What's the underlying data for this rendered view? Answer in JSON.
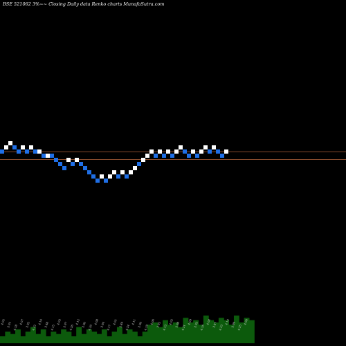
{
  "chart_data": {
    "type": "renko",
    "title": "BSE 521062  3%~~ Closing Daily data  Renko  charts MunafaSutra.com",
    "colors": {
      "background": "#000000",
      "up_brick": "#ffffff",
      "down_brick": "#1f6fe6",
      "reference_line": "#b4643a",
      "volume": "#0c5a0c"
    },
    "bricks": [
      {
        "dir": "down",
        "level": 0
      },
      {
        "dir": "up",
        "level": 1
      },
      {
        "dir": "up",
        "level": 2
      },
      {
        "dir": "down",
        "level": 1
      },
      {
        "dir": "down",
        "level": 0
      },
      {
        "dir": "up",
        "level": 1
      },
      {
        "dir": "down",
        "level": 0
      },
      {
        "dir": "up",
        "level": 1
      },
      {
        "dir": "down",
        "level": 0
      },
      {
        "dir": "up",
        "level": 0
      },
      {
        "dir": "down",
        "level": -1
      },
      {
        "dir": "up",
        "level": -1
      },
      {
        "dir": "down",
        "level": -1
      },
      {
        "dir": "down",
        "level": -2
      },
      {
        "dir": "down",
        "level": -3
      },
      {
        "dir": "down",
        "level": -4
      },
      {
        "dir": "up",
        "level": -2
      },
      {
        "dir": "down",
        "level": -3
      },
      {
        "dir": "up",
        "level": -2
      },
      {
        "dir": "down",
        "level": -3
      },
      {
        "dir": "down",
        "level": -4
      },
      {
        "dir": "down",
        "level": -5
      },
      {
        "dir": "down",
        "level": -6
      },
      {
        "dir": "down",
        "level": -7
      },
      {
        "dir": "up",
        "level": -6
      },
      {
        "dir": "down",
        "level": -7
      },
      {
        "dir": "up",
        "level": -6
      },
      {
        "dir": "up",
        "level": -5
      },
      {
        "dir": "down",
        "level": -6
      },
      {
        "dir": "up",
        "level": -5
      },
      {
        "dir": "down",
        "level": -6
      },
      {
        "dir": "up",
        "level": -5
      },
      {
        "dir": "up",
        "level": -4
      },
      {
        "dir": "down",
        "level": -3
      },
      {
        "dir": "up",
        "level": -2
      },
      {
        "dir": "up",
        "level": -1
      },
      {
        "dir": "up",
        "level": 0
      },
      {
        "dir": "down",
        "level": -1
      },
      {
        "dir": "up",
        "level": 0
      },
      {
        "dir": "down",
        "level": -1
      },
      {
        "dir": "up",
        "level": 0
      },
      {
        "dir": "down",
        "level": -1
      },
      {
        "dir": "up",
        "level": 0
      },
      {
        "dir": "up",
        "level": 1
      },
      {
        "dir": "down",
        "level": 0
      },
      {
        "dir": "down",
        "level": -1
      },
      {
        "dir": "up",
        "level": 0
      },
      {
        "dir": "down",
        "level": -1
      },
      {
        "dir": "up",
        "level": 0
      },
      {
        "dir": "up",
        "level": 1
      },
      {
        "dir": "down",
        "level": 0
      },
      {
        "dir": "up",
        "level": 1
      },
      {
        "dir": "down",
        "level": 0
      },
      {
        "dir": "down",
        "level": -1
      },
      {
        "dir": "up",
        "level": 0
      }
    ],
    "reference_levels": [
      0.4,
      -1.4
    ],
    "volume": [
      3,
      5,
      4,
      6,
      3,
      5,
      7,
      4,
      6,
      3,
      5,
      4,
      6,
      5,
      3,
      7,
      4,
      6,
      5,
      4,
      6,
      3,
      5,
      7,
      4,
      6,
      5,
      3,
      5,
      8,
      9,
      7,
      10,
      8,
      9,
      7,
      11,
      9,
      10,
      8,
      12,
      10,
      9,
      11,
      10,
      8,
      12,
      9,
      11,
      10
    ],
    "volume_labels": [
      "4.05",
      "3.91",
      "4.18",
      "4.07",
      "3.95",
      "4.22",
      "4.10",
      "3.88",
      "4.15",
      "4.03",
      "3.97",
      "4.26",
      "4.12",
      "3.90",
      "4.20",
      "4.08",
      "3.94",
      "4.17",
      "4.01",
      "3.89",
      "4.24",
      "4.11",
      "3.96",
      "4.19",
      "4.06",
      "3.92",
      "4.13",
      "4.02",
      "3.98",
      "4.21",
      "4.09",
      "3.93",
      "4.16",
      "4.04",
      "3.87",
      "4.23",
      "4.14",
      "3.99",
      "4.25",
      "4.00"
    ]
  }
}
